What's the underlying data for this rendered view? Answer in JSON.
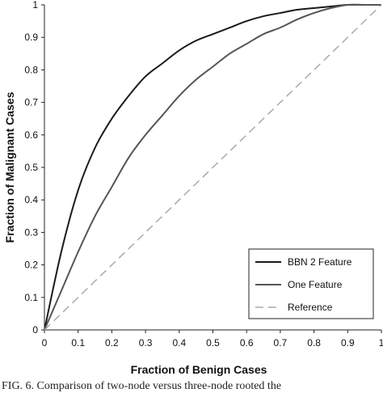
{
  "chart_data": {
    "type": "line",
    "xlabel": "Fraction of Benign Cases",
    "ylabel": "Fraction of Malignant Cases",
    "xlim": [
      0,
      1
    ],
    "ylim": [
      0,
      1
    ],
    "x_ticks": [
      "0",
      "0.1",
      "0.2",
      "0.3",
      "0.4",
      "0.5",
      "0.6",
      "0.7",
      "0.8",
      "0.9",
      "1"
    ],
    "y_ticks": [
      "0",
      "0.1",
      "0.2",
      "0.3",
      "0.4",
      "0.5",
      "0.6",
      "0.7",
      "0.8",
      "0.9",
      "1"
    ],
    "grid": false,
    "legend_position": "bottom-right",
    "series": [
      {
        "name": "BBN 2 Feature",
        "color": "#1a1a1a",
        "style": "solid",
        "x": [
          0,
          0.05,
          0.1,
          0.15,
          0.2,
          0.25,
          0.3,
          0.35,
          0.4,
          0.45,
          0.5,
          0.55,
          0.6,
          0.65,
          0.7,
          0.75,
          0.8,
          0.85,
          0.9,
          0.95,
          1
        ],
        "y": [
          0,
          0.24,
          0.43,
          0.56,
          0.65,
          0.72,
          0.78,
          0.82,
          0.86,
          0.89,
          0.91,
          0.93,
          0.95,
          0.965,
          0.975,
          0.985,
          0.99,
          0.995,
          1,
          1,
          1
        ]
      },
      {
        "name": "One Feature",
        "color": "#555555",
        "style": "solid",
        "x": [
          0,
          0.05,
          0.1,
          0.15,
          0.2,
          0.25,
          0.3,
          0.35,
          0.4,
          0.45,
          0.5,
          0.55,
          0.6,
          0.65,
          0.7,
          0.75,
          0.8,
          0.85,
          0.9,
          0.95,
          1
        ],
        "y": [
          0,
          0.12,
          0.24,
          0.35,
          0.44,
          0.53,
          0.6,
          0.66,
          0.72,
          0.77,
          0.81,
          0.85,
          0.88,
          0.91,
          0.93,
          0.955,
          0.975,
          0.99,
          1,
          1,
          1
        ]
      },
      {
        "name": "Reference",
        "color": "#aaaaaa",
        "style": "dashed",
        "x": [
          0,
          1
        ],
        "y": [
          0,
          1
        ]
      }
    ]
  },
  "caption": "FIG. 6.   Comparison of two-node versus three-node rooted the"
}
